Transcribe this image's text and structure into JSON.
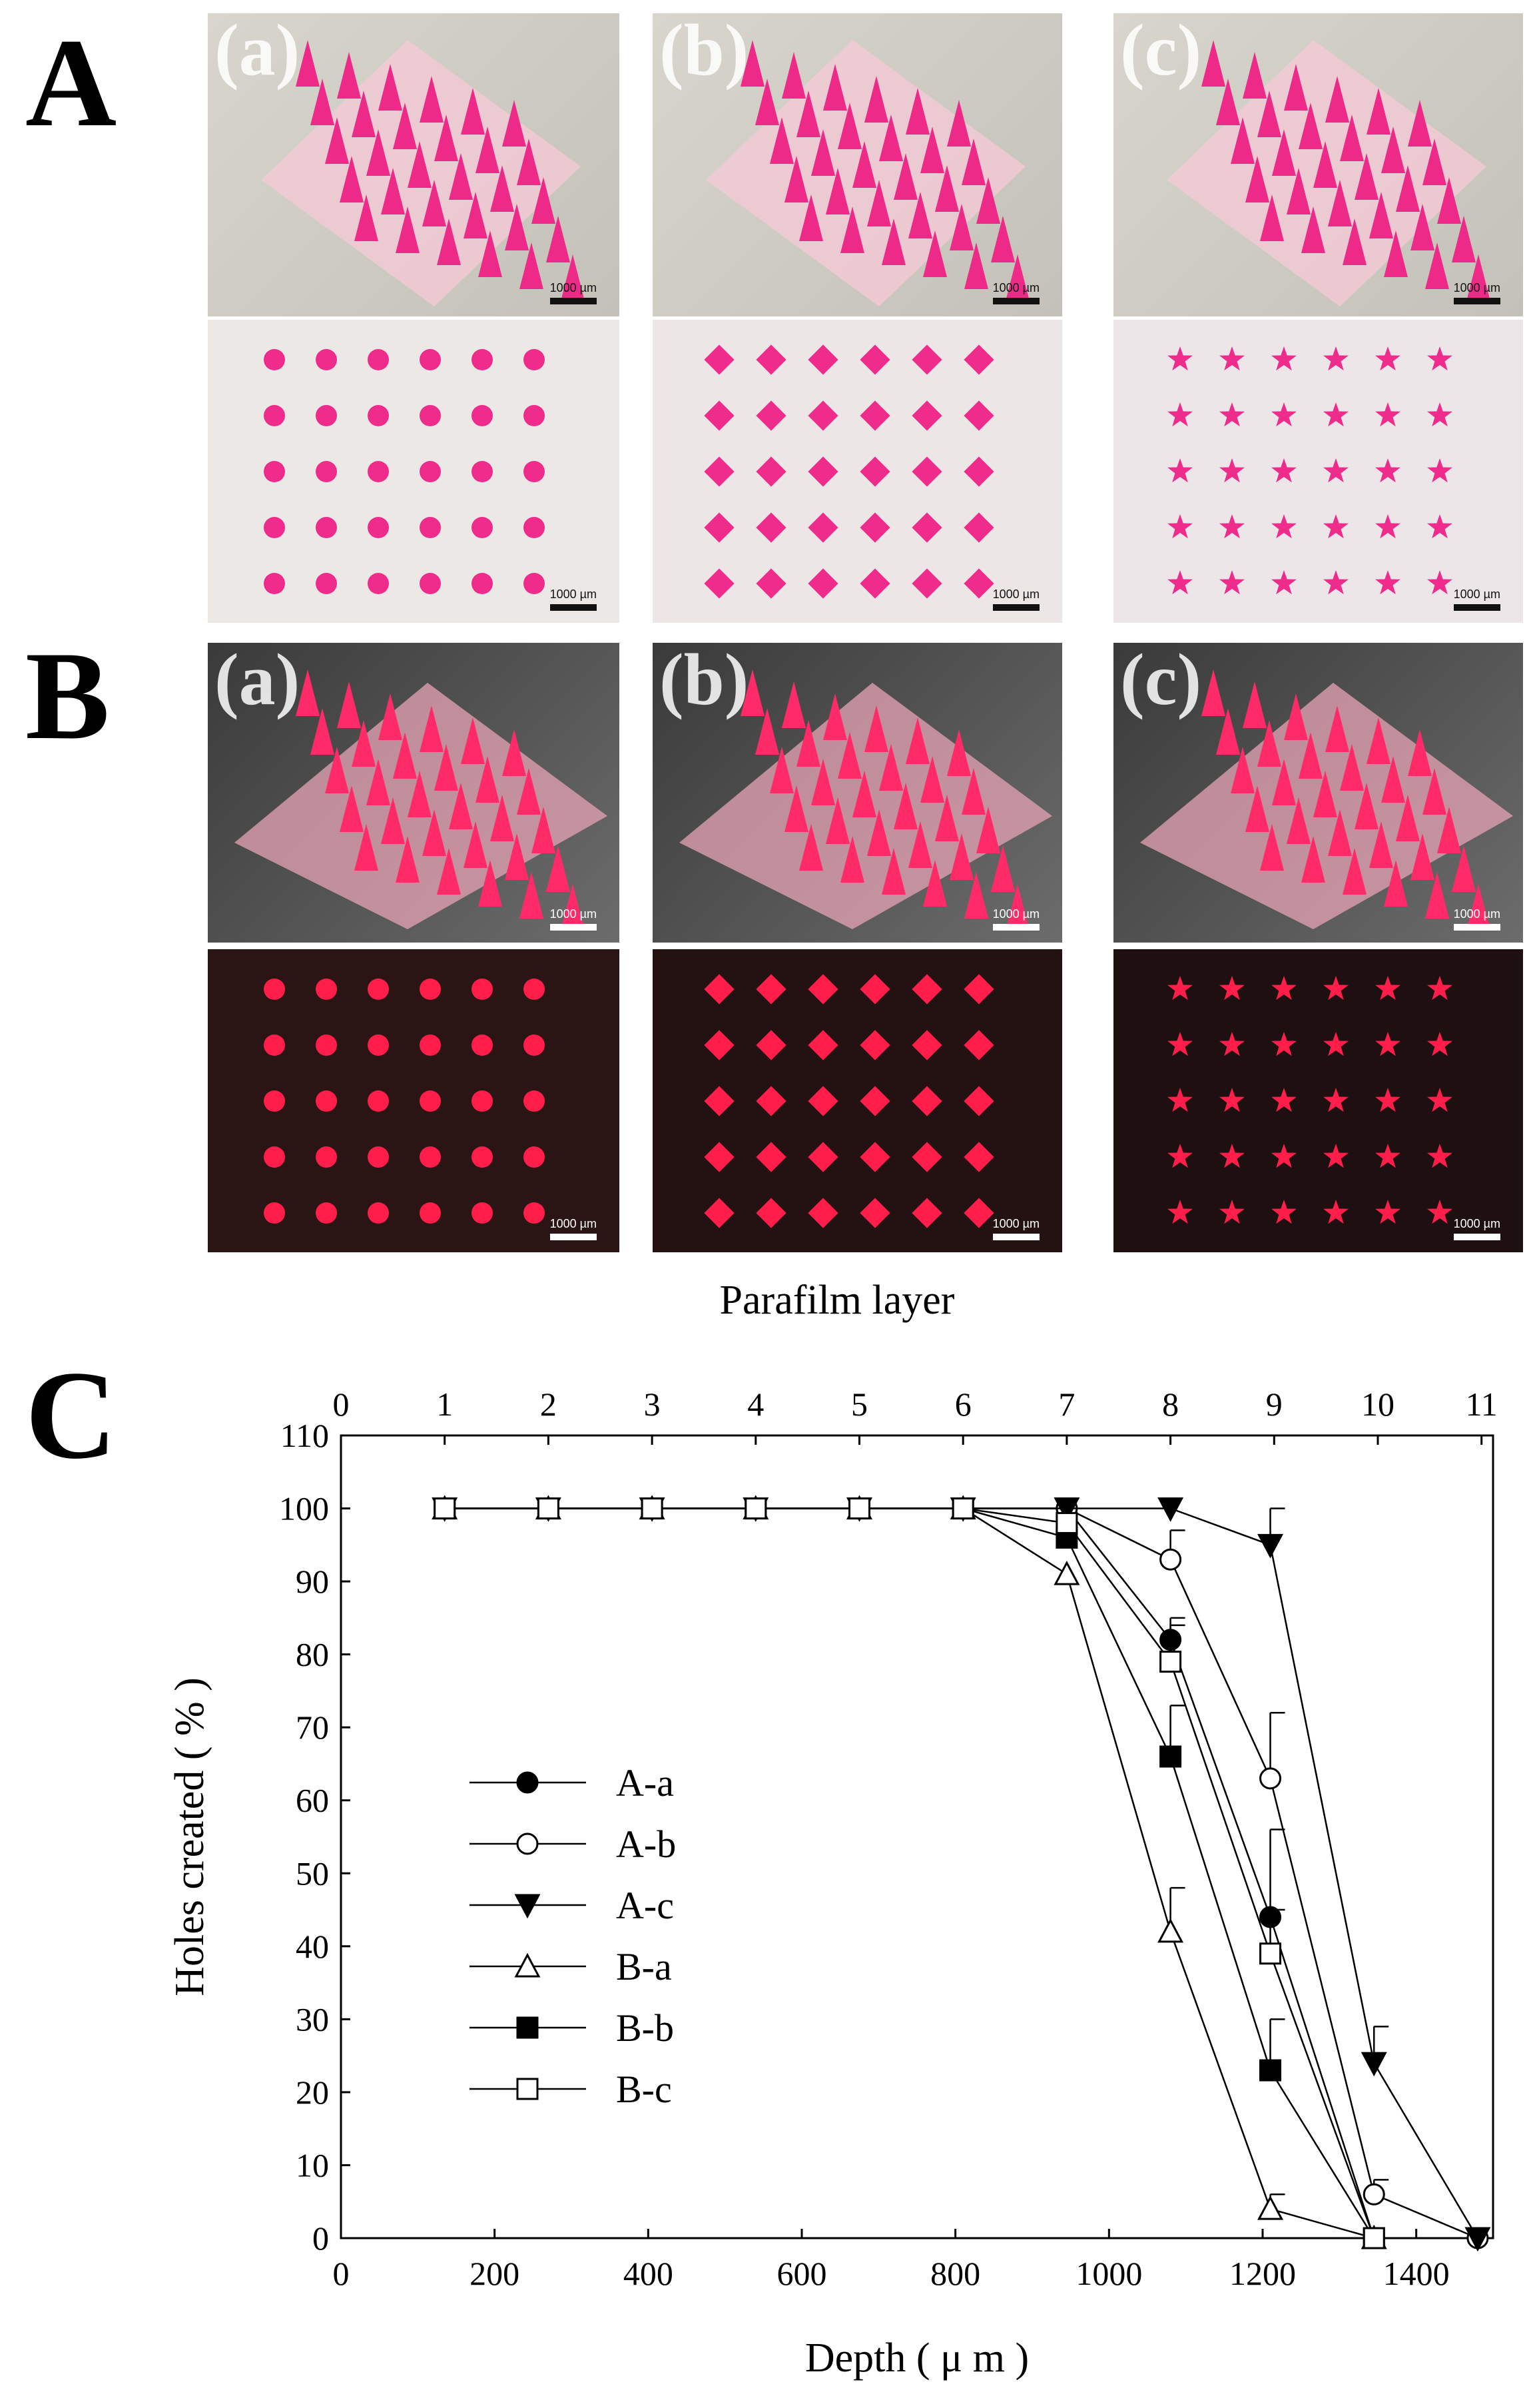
{
  "panels": {
    "A": {
      "letter": "A",
      "sublabels": [
        "(a)",
        "(b)",
        "(c)"
      ],
      "scale_bar": "1000 µm"
    },
    "B": {
      "letter": "B",
      "sublabels": [
        "(a)",
        "(b)",
        "(c)"
      ],
      "scale_bar": "1000 µm"
    },
    "C": {
      "letter": "C"
    }
  },
  "chart_data": {
    "type": "line",
    "top_axis_label": "Parafilm layer",
    "top_ticks": [
      0,
      1,
      2,
      3,
      4,
      5,
      6,
      7,
      8,
      9,
      10,
      11
    ],
    "xlabel": "Depth ( μ m )",
    "ylabel": "Holes created ( % )",
    "xlim": [
      0,
      1500
    ],
    "ylim": [
      0,
      110
    ],
    "xticks": [
      0,
      200,
      400,
      600,
      800,
      1000,
      1200,
      1400
    ],
    "yticks": [
      0,
      10,
      20,
      30,
      40,
      50,
      60,
      70,
      80,
      90,
      100,
      110
    ],
    "legend_position": "left",
    "series": [
      {
        "name": "A-a",
        "marker": "circle-filled",
        "x": [
          135,
          270,
          405,
          540,
          675,
          810,
          945,
          1080,
          1210,
          1345
        ],
        "y": [
          100,
          100,
          100,
          100,
          100,
          100,
          100,
          82,
          44,
          0
        ],
        "err": [
          0,
          0,
          0,
          0,
          0,
          0,
          0,
          3,
          12,
          0
        ]
      },
      {
        "name": "A-b",
        "marker": "circle-open",
        "x": [
          135,
          270,
          405,
          540,
          675,
          810,
          945,
          1080,
          1210,
          1345,
          1480
        ],
        "y": [
          100,
          100,
          100,
          100,
          100,
          100,
          100,
          93,
          63,
          6,
          0
        ],
        "err": [
          0,
          0,
          0,
          0,
          0,
          0,
          0,
          4,
          9,
          2,
          0
        ]
      },
      {
        "name": "A-c",
        "marker": "triangle-down-filled",
        "x": [
          135,
          270,
          405,
          540,
          675,
          810,
          945,
          1080,
          1210,
          1345,
          1480
        ],
        "y": [
          100,
          100,
          100,
          100,
          100,
          100,
          100,
          100,
          95,
          24,
          0
        ],
        "err": [
          0,
          0,
          0,
          0,
          0,
          0,
          0,
          0,
          5,
          5,
          0
        ]
      },
      {
        "name": "B-a",
        "marker": "triangle-up-open",
        "x": [
          135,
          270,
          405,
          540,
          675,
          810,
          945,
          1080,
          1210,
          1345
        ],
        "y": [
          100,
          100,
          100,
          100,
          100,
          100,
          91,
          42,
          4,
          0
        ],
        "err": [
          0,
          0,
          0,
          0,
          0,
          0,
          0,
          6,
          2,
          0
        ]
      },
      {
        "name": "B-b",
        "marker": "square-filled",
        "x": [
          135,
          270,
          405,
          540,
          675,
          810,
          945,
          1080,
          1210,
          1345
        ],
        "y": [
          100,
          100,
          100,
          100,
          100,
          100,
          96,
          66,
          23,
          0
        ],
        "err": [
          0,
          0,
          0,
          0,
          0,
          0,
          0,
          7,
          7,
          0
        ]
      },
      {
        "name": "B-c",
        "marker": "square-open",
        "x": [
          135,
          270,
          405,
          540,
          675,
          810,
          945,
          1080,
          1210,
          1345
        ],
        "y": [
          100,
          100,
          100,
          100,
          100,
          100,
          98,
          79,
          39,
          0
        ],
        "err": [
          0,
          0,
          0,
          0,
          0,
          0,
          0,
          5,
          6,
          0
        ]
      }
    ]
  }
}
